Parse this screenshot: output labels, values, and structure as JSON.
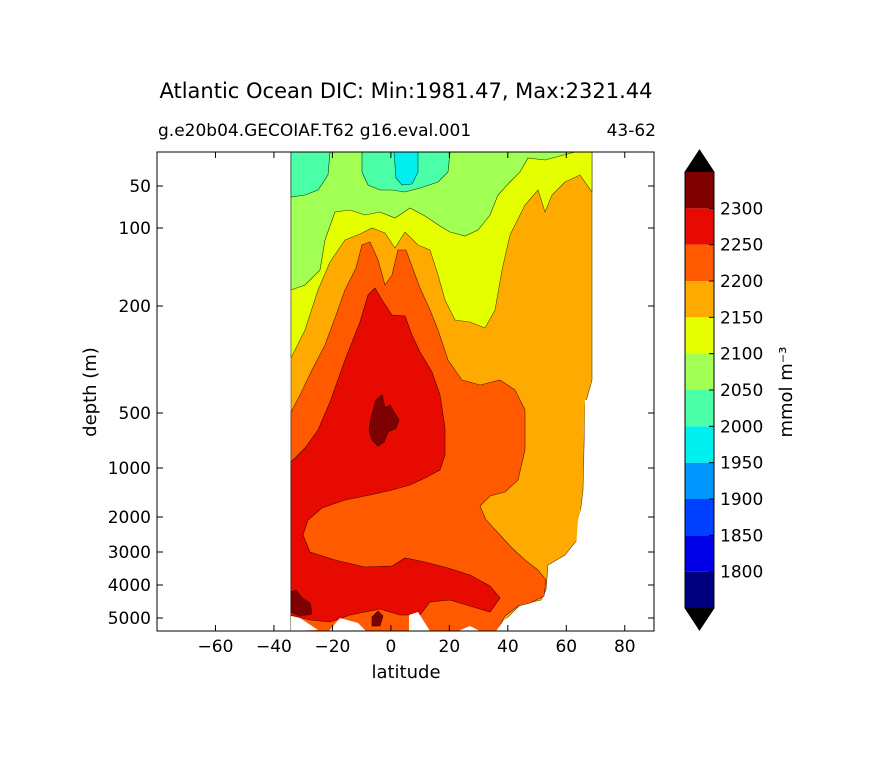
{
  "chart_data": {
    "type": "contourf",
    "title": "Atlantic Ocean DIC: Min:1981.47, Max:2321.44",
    "subtitle_left": "g.e20b04.GECOIAF.T62 g16.eval.001",
    "subtitle_right": "43-62",
    "xlabel": "latitude",
    "ylabel": "depth (m)",
    "xlim": [
      -80,
      90
    ],
    "ylim": [
      5500,
      20
    ],
    "y_scale": "symlog-like (depth)",
    "x_ticks": [
      {
        "value": -60,
        "label": "−60"
      },
      {
        "value": -40,
        "label": "−40"
      },
      {
        "value": -20,
        "label": "−20"
      },
      {
        "value": 0,
        "label": "0"
      },
      {
        "value": 20,
        "label": "20"
      },
      {
        "value": 40,
        "label": "40"
      },
      {
        "value": 60,
        "label": "60"
      },
      {
        "value": 80,
        "label": "80"
      }
    ],
    "y_ticks": [
      {
        "value": 50,
        "label": "50"
      },
      {
        "value": 100,
        "label": "100"
      },
      {
        "value": 200,
        "label": "200"
      },
      {
        "value": 500,
        "label": "500"
      },
      {
        "value": 1000,
        "label": "1000"
      },
      {
        "value": 2000,
        "label": "2000"
      },
      {
        "value": 3000,
        "label": "3000"
      },
      {
        "value": 4000,
        "label": "4000"
      },
      {
        "value": 5000,
        "label": "5000"
      }
    ],
    "colorbar": {
      "label": "mmol m⁻³",
      "levels": [
        1750,
        1800,
        1850,
        1900,
        1950,
        2000,
        2050,
        2100,
        2150,
        2200,
        2250,
        2300,
        2350
      ],
      "tick_labels": [
        "1800",
        "1850",
        "1900",
        "1950",
        "2000",
        "2050",
        "2100",
        "2150",
        "2200",
        "2250",
        "2300"
      ],
      "colors": [
        "#00007f",
        "#0000e6",
        "#0040ff",
        "#0096ff",
        "#00f0f0",
        "#4bffa7",
        "#a2ff53",
        "#e6ff00",
        "#ffaa00",
        "#ff5a00",
        "#e60a00",
        "#7f0000"
      ],
      "extend": "both",
      "under_color": "#000000",
      "over_color": "#000000"
    },
    "data_extent_latitude": [
      -34,
      68
    ]
  }
}
